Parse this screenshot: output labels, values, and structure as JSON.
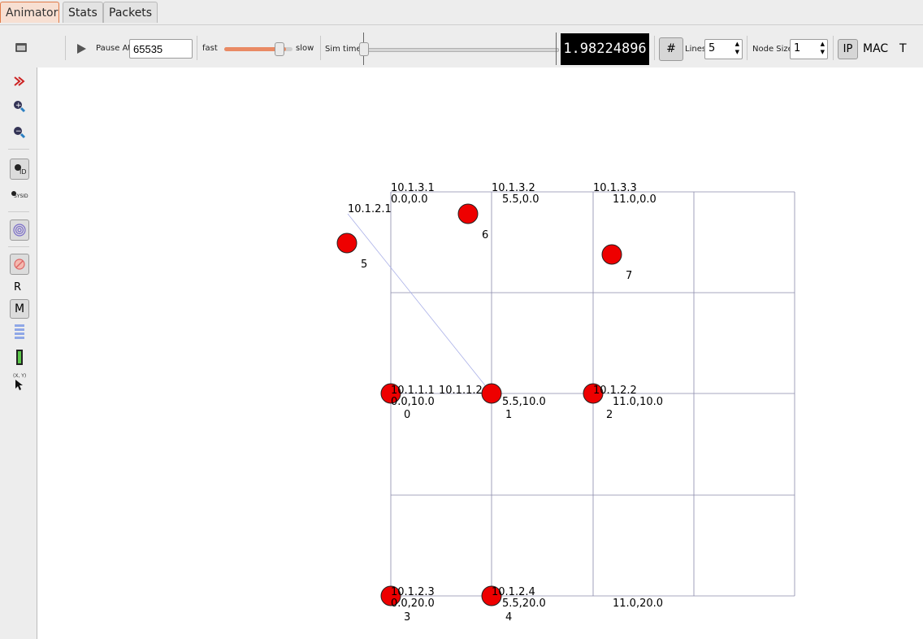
{
  "tabs": [
    {
      "label": "Animator"
    },
    {
      "label": "Stats"
    },
    {
      "label": "Packets"
    }
  ],
  "toolbar": {
    "play_icon": "play-icon",
    "pause_at_label": "Pause At",
    "pause_at_value": "65535",
    "fast_label": "fast",
    "slow_label": "slow",
    "speed_level_fraction": 0.91,
    "sim_time_label": "Sim time",
    "sim_time_fraction": 0.0,
    "time_display": "1.98224896",
    "grid_icon": "grid-icon",
    "lines_label": "Lines",
    "lines_value": "5",
    "node_size_label": "Node Size",
    "node_size_value": "1",
    "ip_label": "IP",
    "mac_label": "MAC",
    "t_label": "T"
  },
  "sidebar": {
    "icons": [
      "window-icon",
      "fast-forward-icon",
      "zoom-in-icon",
      "zoom-out-icon",
      "node-id-icon",
      "sysid-icon",
      "spiral-icon",
      "block-icon",
      "r-button",
      "m-button",
      "list-icon",
      "battery-icon",
      "xy-cursor-icon"
    ],
    "id_label": "ID",
    "sysid_label": "SYSID",
    "r_label": "R",
    "m_label": "M",
    "xy_label": "(X, Y)"
  },
  "canvas": {
    "grid_coords": [
      {
        "text": "0.0,0.0"
      },
      {
        "text": "5.5,0.0"
      },
      {
        "text": "11.0,0.0"
      },
      {
        "text": "0.0,10.0"
      },
      {
        "text": "5.5,10.0"
      },
      {
        "text": "11.0,10.0"
      },
      {
        "text": "0.0,20.0"
      },
      {
        "text": "5.5,20.0"
      },
      {
        "text": "11.0,20.0"
      }
    ],
    "ip_labels": [
      {
        "text": "10.1.3.1"
      },
      {
        "text": "10.1.3.2"
      },
      {
        "text": "10.1.3.3"
      },
      {
        "text": "10.1.2.1"
      },
      {
        "text": "10.1.1.1"
      },
      {
        "text": "10.1.1.2"
      },
      {
        "text": "10.1.2.2"
      },
      {
        "text": "10.1.2.3"
      },
      {
        "text": "10.1.2.4"
      }
    ],
    "nodes": [
      {
        "id": "0"
      },
      {
        "id": "1"
      },
      {
        "id": "2"
      },
      {
        "id": "3"
      },
      {
        "id": "4"
      },
      {
        "id": "5"
      },
      {
        "id": "6"
      },
      {
        "id": "7"
      }
    ],
    "node_color": "#ee0000",
    "grid_color": "#8a8aaa"
  }
}
